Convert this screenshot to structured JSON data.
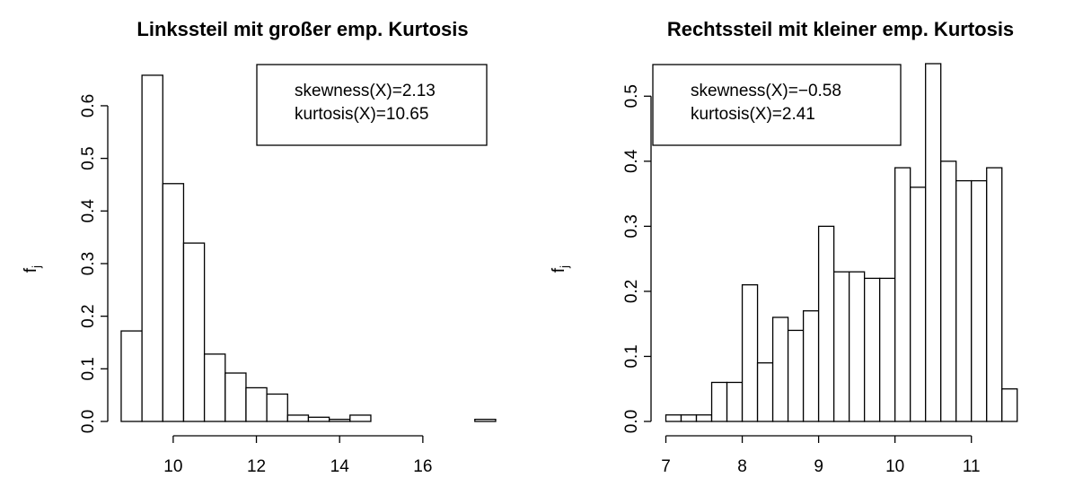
{
  "chart_data": [
    {
      "type": "bar",
      "title": "Linkssteil mit großer emp. Kurtosis",
      "ylabel": "f",
      "ylabel_sub": "j",
      "xlim": [
        8.6,
        17.6
      ],
      "ylim": [
        0,
        0.68
      ],
      "x_ticks": [
        10,
        12,
        14,
        16
      ],
      "y_ticks": [
        "0.0",
        "0.1",
        "0.2",
        "0.3",
        "0.4",
        "0.5",
        "0.6"
      ],
      "bins": [
        {
          "x0": 8.75,
          "x1": 9.25,
          "value": 0.172
        },
        {
          "x0": 9.25,
          "x1": 9.75,
          "value": 0.658
        },
        {
          "x0": 9.75,
          "x1": 10.25,
          "value": 0.452
        },
        {
          "x0": 10.25,
          "x1": 10.75,
          "value": 0.339
        },
        {
          "x0": 10.75,
          "x1": 11.25,
          "value": 0.128
        },
        {
          "x0": 11.25,
          "x1": 11.75,
          "value": 0.092
        },
        {
          "x0": 11.75,
          "x1": 12.25,
          "value": 0.064
        },
        {
          "x0": 12.25,
          "x1": 12.75,
          "value": 0.052
        },
        {
          "x0": 12.75,
          "x1": 13.25,
          "value": 0.012
        },
        {
          "x0": 13.25,
          "x1": 13.75,
          "value": 0.008
        },
        {
          "x0": 13.75,
          "x1": 14.25,
          "value": 0.004
        },
        {
          "x0": 14.25,
          "x1": 14.75,
          "value": 0.012
        },
        {
          "x0": 14.75,
          "x1": 15.25,
          "value": 0.0
        },
        {
          "x0": 15.25,
          "x1": 15.75,
          "value": 0.0
        },
        {
          "x0": 15.75,
          "x1": 16.25,
          "value": 0.0
        },
        {
          "x0": 16.25,
          "x1": 16.75,
          "value": 0.0
        },
        {
          "x0": 16.75,
          "x1": 17.25,
          "value": 0.0
        },
        {
          "x0": 17.25,
          "x1": 17.75,
          "value": 0.004
        }
      ],
      "legend": [
        "skewness(X)=2.13",
        "kurtosis(X)=10.65"
      ],
      "legend_position": "top-right",
      "grid": false
    },
    {
      "type": "bar",
      "title": "Rechtssteil mit kleiner emp. Kurtosis",
      "ylabel": "f",
      "ylabel_sub": "j",
      "xlim": [
        6.9,
        11.65
      ],
      "ylim": [
        0,
        0.55
      ],
      "x_ticks": [
        7,
        8,
        9,
        10,
        11
      ],
      "y_ticks": [
        "0.0",
        "0.1",
        "0.2",
        "0.3",
        "0.4",
        "0.5"
      ],
      "bins": [
        {
          "x0": 7.0,
          "x1": 7.2,
          "value": 0.01
        },
        {
          "x0": 7.2,
          "x1": 7.4,
          "value": 0.01
        },
        {
          "x0": 7.4,
          "x1": 7.6,
          "value": 0.01
        },
        {
          "x0": 7.6,
          "x1": 7.8,
          "value": 0.06
        },
        {
          "x0": 7.8,
          "x1": 8.0,
          "value": 0.06
        },
        {
          "x0": 8.0,
          "x1": 8.2,
          "value": 0.21
        },
        {
          "x0": 8.2,
          "x1": 8.4,
          "value": 0.09
        },
        {
          "x0": 8.4,
          "x1": 8.6,
          "value": 0.16
        },
        {
          "x0": 8.6,
          "x1": 8.8,
          "value": 0.14
        },
        {
          "x0": 8.8,
          "x1": 9.0,
          "value": 0.17
        },
        {
          "x0": 9.0,
          "x1": 9.2,
          "value": 0.3
        },
        {
          "x0": 9.2,
          "x1": 9.4,
          "value": 0.23
        },
        {
          "x0": 9.4,
          "x1": 9.6,
          "value": 0.23
        },
        {
          "x0": 9.6,
          "x1": 9.8,
          "value": 0.22
        },
        {
          "x0": 9.8,
          "x1": 10.0,
          "value": 0.22
        },
        {
          "x0": 10.0,
          "x1": 10.2,
          "value": 0.39
        },
        {
          "x0": 10.2,
          "x1": 10.4,
          "value": 0.36
        },
        {
          "x0": 10.4,
          "x1": 10.6,
          "value": 0.55
        },
        {
          "x0": 10.6,
          "x1": 10.8,
          "value": 0.4
        },
        {
          "x0": 10.8,
          "x1": 11.0,
          "value": 0.37
        },
        {
          "x0": 11.0,
          "x1": 11.2,
          "value": 0.37
        },
        {
          "x0": 11.2,
          "x1": 11.4,
          "value": 0.39
        },
        {
          "x0": 11.4,
          "x1": 11.6,
          "value": 0.05
        }
      ],
      "legend": [
        "skewness(X)=−0.58",
        "kurtosis(X)=2.41"
      ],
      "legend_position": "top-left",
      "grid": false
    }
  ]
}
